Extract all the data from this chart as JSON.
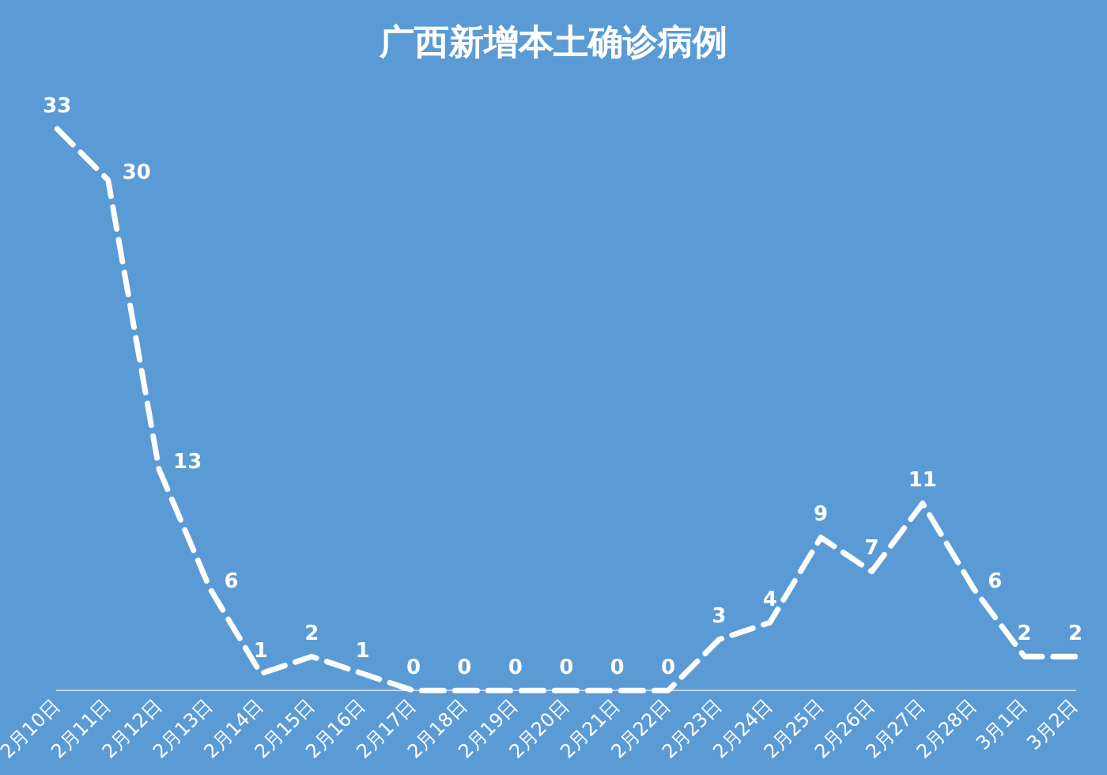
{
  "chart_data": {
    "type": "line",
    "title": "广西新增本土确诊病例",
    "categories": [
      "2月10日",
      "2月11日",
      "2月12日",
      "2月13日",
      "2月14日",
      "2月15日",
      "2月16日",
      "2月17日",
      "2月18日",
      "2月19日",
      "2月20日",
      "2月21日",
      "2月22日",
      "2月23日",
      "2月24日",
      "2月25日",
      "2月26日",
      "2月27日",
      "2月28日",
      "3月1日",
      "3月2日"
    ],
    "series": [
      {
        "color": "#ffffff",
        "values": [
          33,
          30,
          13,
          6,
          1,
          2,
          1,
          0,
          0,
          0,
          0,
          0,
          0,
          3,
          4,
          9,
          7,
          11,
          6,
          2,
          2
        ]
      }
    ],
    "data_labels": true,
    "line_style": "dashed",
    "marker": "none",
    "grid": false,
    "legend": false,
    "tick_labels": "x"
  }
}
